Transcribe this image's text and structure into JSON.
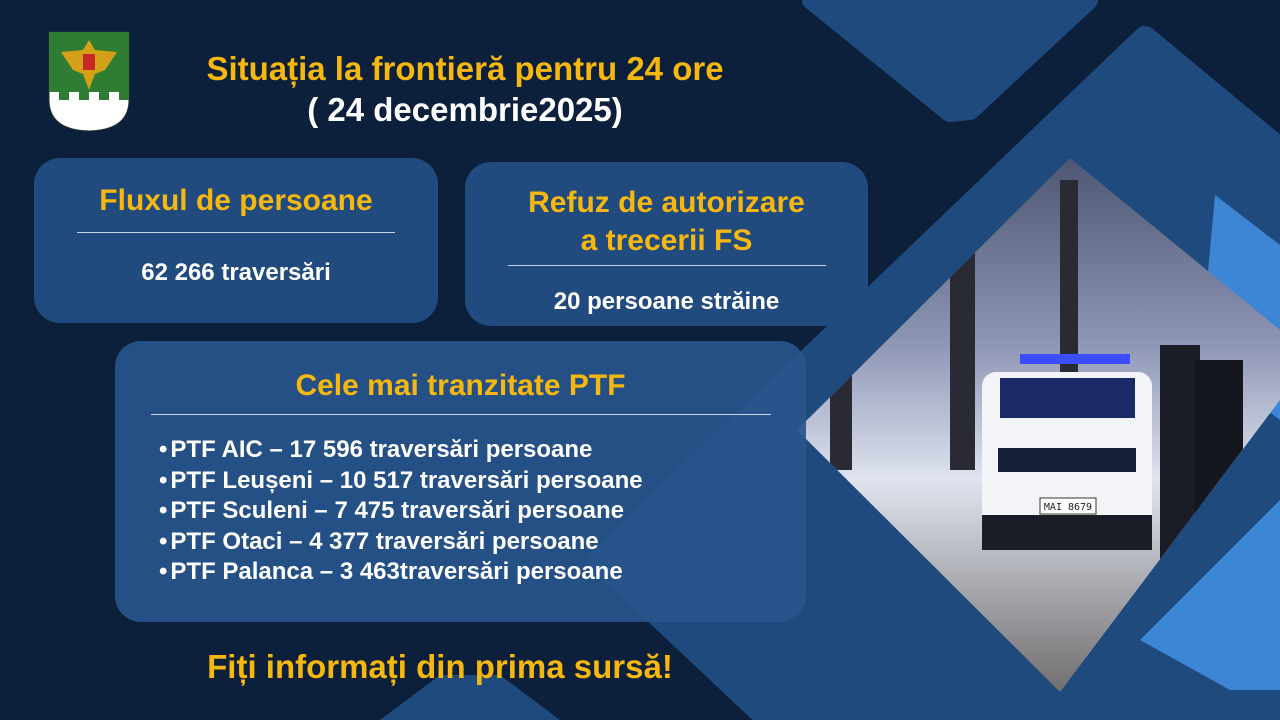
{
  "header": {
    "title": "Situația la frontieră pentru 24 ore",
    "date": "( 24 decembrie2025)"
  },
  "emblem": {
    "icon": "moldova-border-police-coat-of-arms",
    "colors": {
      "field": "#2f7d32",
      "eagle": "#d4a017",
      "base": "#ffffff"
    }
  },
  "flux": {
    "title": "Fluxul de persoane",
    "value": "62 266 traversări"
  },
  "refuz": {
    "title_line1": "Refuz de autorizare",
    "title_line2": "a trecerii FS",
    "value": "20 persoane străine"
  },
  "ptf": {
    "title": "Cele mai tranzitate PTF",
    "bullet": "•",
    "items": [
      "PTF AIC – 17 596 traversări persoane",
      "PTF Leușeni – 10 517 traversări persoane",
      "PTF Sculeni – 7 475 traversări persoane",
      "PTF Otaci –  4 377 traversări persoane",
      "PTF Palanca –  3 463traversări persoane"
    ]
  },
  "slogan": "Fiți informați din prima sursă!",
  "photo": {
    "plate": "MAI 8679"
  },
  "colors": {
    "background": "#0c1f3b",
    "panel": "#214b7e",
    "accent": "#f6b70f",
    "light_blue": "#3d86d6"
  }
}
